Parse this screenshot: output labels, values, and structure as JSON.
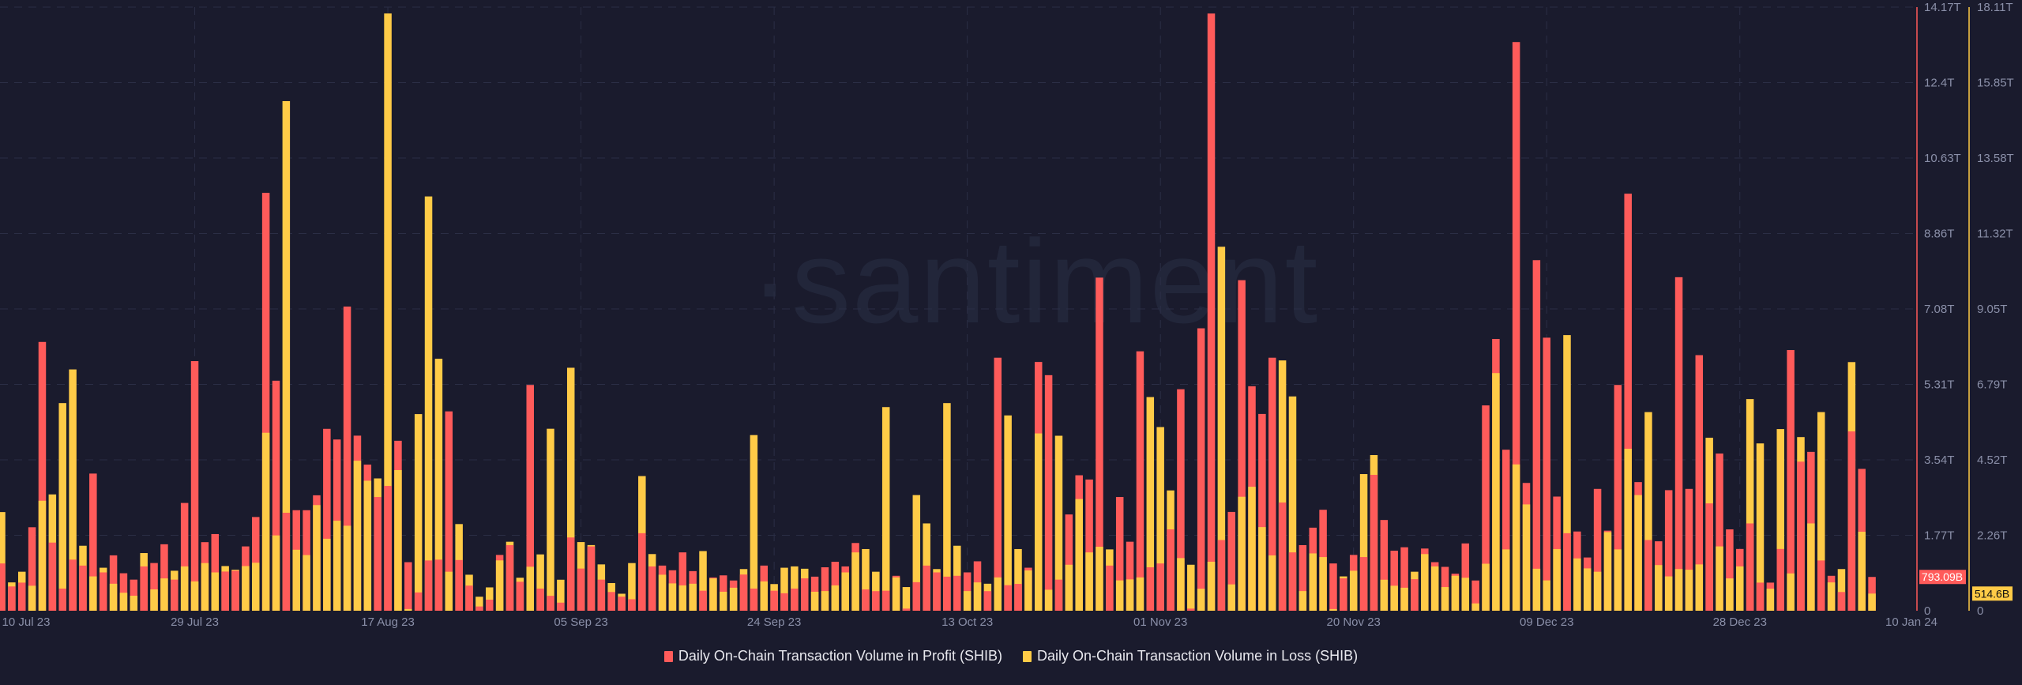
{
  "watermark": "·santiment",
  "chart_data": {
    "type": "bar",
    "title": "",
    "xlabel": "",
    "ylabel": "",
    "start_date": "10 Jul 23",
    "end_date": "10 Jan 24",
    "x_tick_labels": [
      "10 Jul 23",
      "29 Jul 23",
      "17 Aug 23",
      "05 Sep 23",
      "24 Sep 23",
      "13 Oct 23",
      "01 Nov 23",
      "20 Nov 23",
      "09 Dec 23",
      "28 Dec 23",
      "10 Jan 24"
    ],
    "x_tick_indices": [
      0,
      19,
      38,
      57,
      76,
      95,
      114,
      133,
      152,
      171,
      184
    ],
    "y_left": {
      "ylim": [
        0,
        14.17
      ],
      "ticks": [
        "0",
        "1.77T",
        "3.54T",
        "5.31T",
        "7.08T",
        "8.86T",
        "10.63T",
        "12.4T",
        "14.17T"
      ],
      "color": "#ff5b5a"
    },
    "y_right": {
      "ylim": [
        0,
        18.11
      ],
      "ticks": [
        "0",
        "2.26T",
        "4.52T",
        "6.79T",
        "9.05T",
        "11.32T",
        "13.58T",
        "15.85T",
        "18.11T"
      ],
      "color": "#ffcb47"
    },
    "grid": true,
    "legend_position": "bottom-center",
    "series": [
      {
        "name": "Daily On-Chain Transaction Volume in Profit (SHIB)",
        "axis": "left",
        "color": "#ff5b5a",
        "unit": "T",
        "last_value_label": "793.09B",
        "values": [
          1.11,
          0.57,
          0.66,
          1.96,
          6.31,
          1.6,
          0.52,
          1.2,
          1.06,
          3.22,
          0.9,
          1.3,
          0.88,
          0.73,
          1.04,
          1.12,
          1.56,
          0.73,
          2.53,
          5.86,
          1.61,
          1.8,
          0.92,
          0.94,
          1.51,
          2.2,
          9.81,
          5.4,
          2.3,
          2.36,
          2.36,
          2.71,
          4.27,
          4.02,
          7.14,
          4.11,
          3.43,
          2.67,
          2.93,
          3.99,
          1.14,
          0.43,
          1.18,
          1.2,
          4.68,
          1.19,
          0.59,
          0.1,
          0.26,
          1.31,
          1.54,
          0.68,
          5.3,
          0.52,
          0.35,
          0.19,
          1.72,
          0.99,
          1.51,
          0.73,
          0.44,
          0.33,
          0.27,
          1.82,
          1.04,
          1.06,
          0.95,
          1.37,
          0.93,
          0.47,
          0.78,
          0.83,
          0.71,
          0.85,
          0.52,
          1.06,
          0.47,
          0.41,
          0.52,
          0.76,
          0.8,
          1.02,
          1.15,
          1.04,
          1.59,
          0.5,
          0.46,
          0.47,
          0.82,
          0.05,
          0.67,
          1.06,
          0.9,
          0.8,
          0.82,
          0.9,
          1.16,
          0.46,
          5.94,
          0.6,
          0.63,
          1.01,
          5.84,
          5.53,
          0.73,
          2.26,
          3.18,
          3.08,
          7.82,
          1.06,
          2.67,
          1.62,
          6.09,
          1.02,
          1.11,
          1.91,
          5.2,
          0.05,
          6.63,
          14.02,
          1.66,
          2.32,
          7.76,
          5.27,
          4.62,
          5.94,
          2.54,
          1.37,
          1.54,
          1.95,
          2.37,
          1.11,
          0.76,
          1.31,
          1.26,
          3.19,
          2.13,
          1.41,
          1.49,
          0.74,
          1.46,
          1.14,
          1.03,
          0.87,
          1.58,
          0.71,
          4.82,
          6.38,
          3.78,
          13.35,
          3.0,
          8.23,
          6.41,
          2.68,
          1.82,
          1.86,
          1.25,
          2.86,
          1.88,
          5.3,
          9.79,
          3.02,
          1.66,
          1.63,
          2.83,
          7.83,
          2.86,
          6.0,
          2.52,
          3.69,
          1.91,
          1.45,
          2.05,
          0.66,
          0.66,
          1.45,
          6.12,
          3.5,
          3.73,
          1.18,
          0.82,
          0.44,
          4.21,
          3.33,
          0.79309
        ]
      },
      {
        "name": "Daily On-Chain Transaction Volume in Loss (SHIB)",
        "axis": "right",
        "color": "#ffcb47",
        "unit": "T",
        "last_value_label": "514.6B",
        "values": [
          2.96,
          0.85,
          1.17,
          0.75,
          3.3,
          3.49,
          6.23,
          7.24,
          1.95,
          1.03,
          1.29,
          0.81,
          0.54,
          0.45,
          1.73,
          0.64,
          0.97,
          1.2,
          1.33,
          0.88,
          1.43,
          1.15,
          1.34,
          1.23,
          1.34,
          1.44,
          5.34,
          2.26,
          15.29,
          1.83,
          1.67,
          3.17,
          2.16,
          2.7,
          2.55,
          4.5,
          3.9,
          3.97,
          17.92,
          4.22,
          0.05,
          5.9,
          12.43,
          7.56,
          1.17,
          2.6,
          1.08,
          0.42,
          0.7,
          1.51,
          2.07,
          0.99,
          1.32,
          1.69,
          5.46,
          0.93,
          7.29,
          2.06,
          1.97,
          1.39,
          0.83,
          0.51,
          1.43,
          4.04,
          1.7,
          1.08,
          0.82,
          0.76,
          0.81,
          1.79,
          0.97,
          0.57,
          0.69,
          1.25,
          5.27,
          0.88,
          0.8,
          1.29,
          1.33,
          1.26,
          0.57,
          0.59,
          0.76,
          1.15,
          1.75,
          1.85,
          1.17,
          6.11,
          1.0,
          0.71,
          3.47,
          2.62,
          1.25,
          6.23,
          1.95,
          0.59,
          0.85,
          0.81,
          1.0,
          5.86,
          1.85,
          1.21,
          5.32,
          0.63,
          5.25,
          1.38,
          3.35,
          1.75,
          1.92,
          1.84,
          0.91,
          0.94,
          1.0,
          6.41,
          5.51,
          3.61,
          1.58,
          1.38,
          0.66,
          1.47,
          10.92,
          0.79,
          3.42,
          3.72,
          2.51,
          1.66,
          7.51,
          6.43,
          0.59,
          1.72,
          1.61,
          0.05,
          1.03,
          1.2,
          4.1,
          4.67,
          0.93,
          0.75,
          0.69,
          1.17,
          1.7,
          1.33,
          0.71,
          1.05,
          0.99,
          0.22,
          1.41,
          7.13,
          1.84,
          4.39,
          3.19,
          1.26,
          0.91,
          1.85,
          8.27,
          1.57,
          1.27,
          1.17,
          2.36,
          1.84,
          4.86,
          3.47,
          5.96,
          1.37,
          1.03,
          1.25,
          1.23,
          1.39,
          5.19,
          1.93,
          0.97,
          1.33,
          6.35,
          5.02,
          0.66,
          5.45,
          1.12,
          5.21,
          2.62,
          5.96,
          0.85,
          1.25,
          7.46,
          2.37,
          0.5146
        ]
      }
    ]
  }
}
